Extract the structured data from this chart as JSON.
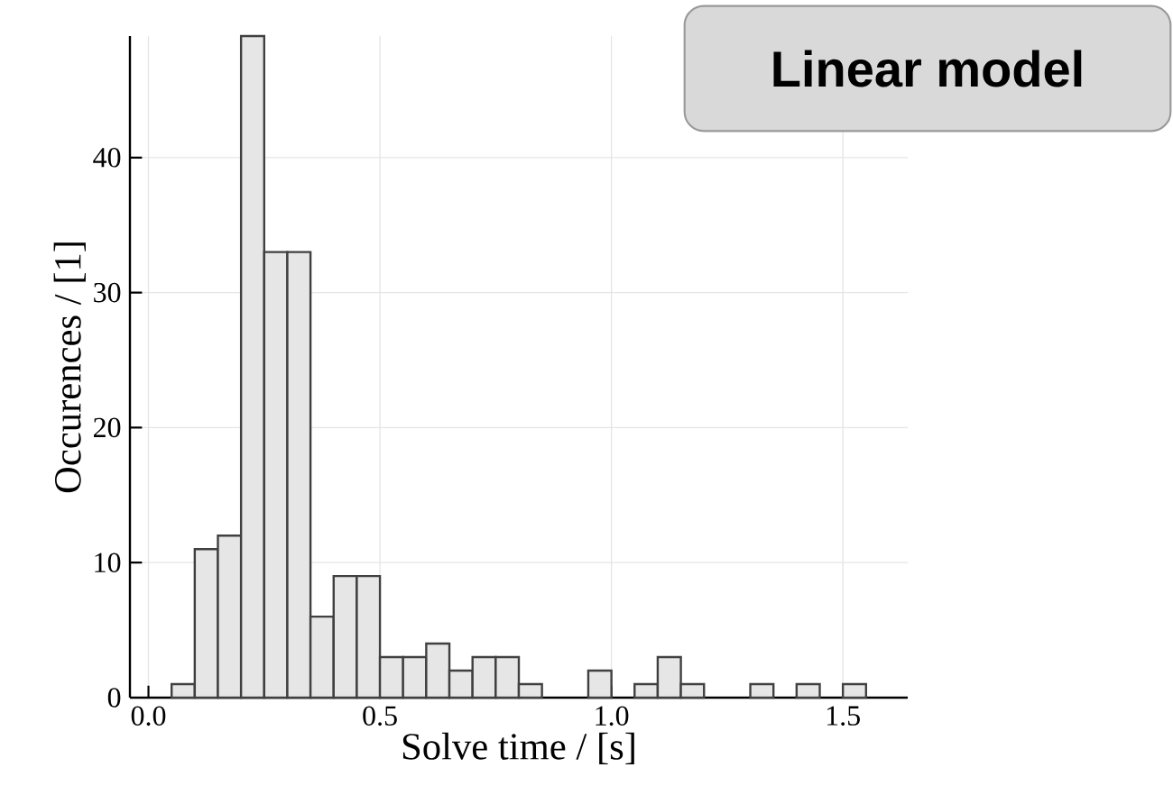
{
  "chart_data": {
    "type": "histogram",
    "title": "Linear model",
    "xlabel": "Solve time / [s]",
    "ylabel": "Occurences / [1]",
    "bins": [
      0.0,
      0.05,
      0.1,
      0.15,
      0.2,
      0.25,
      0.3,
      0.35,
      0.4,
      0.45,
      0.5,
      0.55,
      0.6,
      0.65,
      0.7,
      0.75,
      0.8,
      0.85,
      0.9,
      0.95,
      1.0,
      1.05,
      1.1,
      1.15,
      1.2,
      1.25,
      1.3,
      1.35,
      1.4,
      1.45,
      1.5,
      1.55
    ],
    "values": [
      0,
      1,
      11,
      12,
      49,
      33,
      33,
      6,
      9,
      9,
      3,
      3,
      4,
      2,
      3,
      3,
      1,
      0,
      0,
      2,
      0,
      1,
      3,
      1,
      0,
      0,
      1,
      0,
      1,
      0,
      1
    ],
    "color": "#e6e6e6",
    "xlim": [
      -0.04,
      1.64
    ],
    "ylim": [
      0,
      49
    ],
    "xticks": [
      {
        "value": 0,
        "label": "0.0"
      },
      0.5,
      {
        "value": 1,
        "label": "1.0"
      },
      1.5
    ],
    "yticks": [
      0,
      10,
      20,
      30,
      40
    ],
    "grid": true
  }
}
